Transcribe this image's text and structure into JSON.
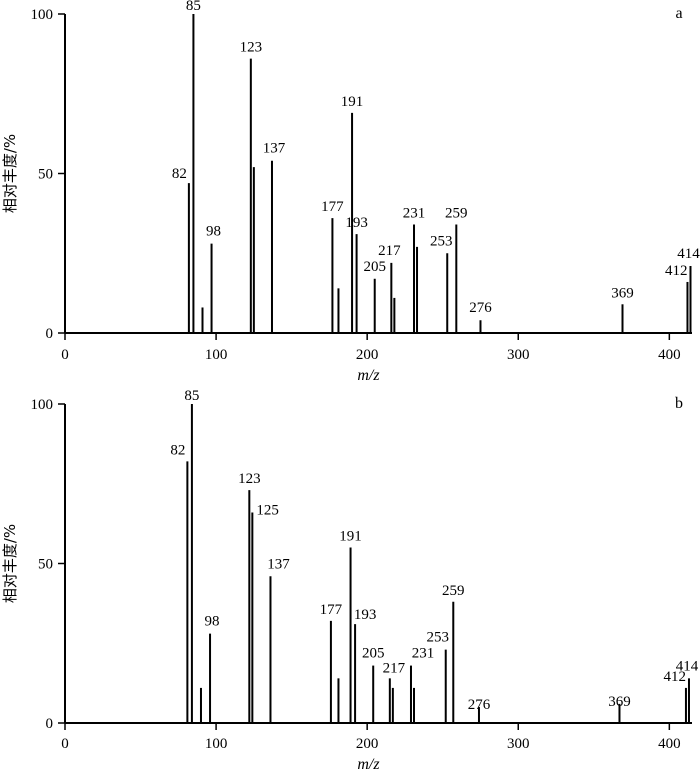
{
  "chart_data": [
    {
      "type": "bar",
      "panel": "a",
      "xlabel": "m/z",
      "ylabel": "相对丰度/%",
      "xlim": [
        0,
        415
      ],
      "ylim": [
        0,
        100
      ],
      "xticks": [
        "0",
        "100",
        "200",
        "300",
        "400"
      ],
      "yticks": [
        "0",
        "50",
        "100"
      ],
      "peaks": [
        {
          "x": 82,
          "y": 47,
          "label": "82"
        },
        {
          "x": 85,
          "y": 100,
          "label": "85"
        },
        {
          "x": 91,
          "y": 8,
          "label": ""
        },
        {
          "x": 97,
          "y": 28,
          "label": "98"
        },
        {
          "x": 123,
          "y": 86,
          "label": "123"
        },
        {
          "x": 125,
          "y": 52,
          "label": ""
        },
        {
          "x": 137,
          "y": 54,
          "label": "137"
        },
        {
          "x": 177,
          "y": 36,
          "label": "177"
        },
        {
          "x": 181,
          "y": 14,
          "label": ""
        },
        {
          "x": 190,
          "y": 69,
          "label": "191"
        },
        {
          "x": 193,
          "y": 31,
          "label": "193"
        },
        {
          "x": 205,
          "y": 17,
          "label": "205"
        },
        {
          "x": 216,
          "y": 22,
          "label": "217"
        },
        {
          "x": 218,
          "y": 11,
          "label": ""
        },
        {
          "x": 231,
          "y": 34,
          "label": "231"
        },
        {
          "x": 233,
          "y": 27,
          "label": ""
        },
        {
          "x": 253,
          "y": 25,
          "label": "253"
        },
        {
          "x": 259,
          "y": 34,
          "label": "259"
        },
        {
          "x": 275,
          "y": 4,
          "label": "276"
        },
        {
          "x": 369,
          "y": 9,
          "label": "369"
        },
        {
          "x": 412,
          "y": 16,
          "label": "412"
        },
        {
          "x": 414,
          "y": 21,
          "label": "414"
        }
      ]
    },
    {
      "type": "bar",
      "panel": "b",
      "xlabel": "m/z",
      "ylabel": "相对丰度/%",
      "xlim": [
        0,
        415
      ],
      "ylim": [
        0,
        100
      ],
      "xticks": [
        "0",
        "100",
        "200",
        "300",
        "400"
      ],
      "yticks": [
        "0",
        "50",
        "100"
      ],
      "peaks": [
        {
          "x": 81,
          "y": 82,
          "label": "82"
        },
        {
          "x": 84,
          "y": 100,
          "label": "85"
        },
        {
          "x": 90,
          "y": 11,
          "label": ""
        },
        {
          "x": 96,
          "y": 28,
          "label": "98"
        },
        {
          "x": 122,
          "y": 73,
          "label": "123"
        },
        {
          "x": 124,
          "y": 66,
          "label": "125"
        },
        {
          "x": 136,
          "y": 46,
          "label": "137"
        },
        {
          "x": 176,
          "y": 32,
          "label": "177"
        },
        {
          "x": 181,
          "y": 14,
          "label": ""
        },
        {
          "x": 189,
          "y": 55,
          "label": "191"
        },
        {
          "x": 192,
          "y": 31,
          "label": "193"
        },
        {
          "x": 204,
          "y": 18,
          "label": "205"
        },
        {
          "x": 215,
          "y": 14,
          "label": "217"
        },
        {
          "x": 217,
          "y": 11,
          "label": ""
        },
        {
          "x": 229,
          "y": 18,
          "label": "231"
        },
        {
          "x": 231,
          "y": 11,
          "label": ""
        },
        {
          "x": 252,
          "y": 23,
          "label": "253"
        },
        {
          "x": 257,
          "y": 38,
          "label": "259"
        },
        {
          "x": 274,
          "y": 5,
          "label": "276"
        },
        {
          "x": 367,
          "y": 6,
          "label": "369"
        },
        {
          "x": 411,
          "y": 11,
          "label": "412"
        },
        {
          "x": 413,
          "y": 14,
          "label": "414"
        }
      ]
    }
  ]
}
